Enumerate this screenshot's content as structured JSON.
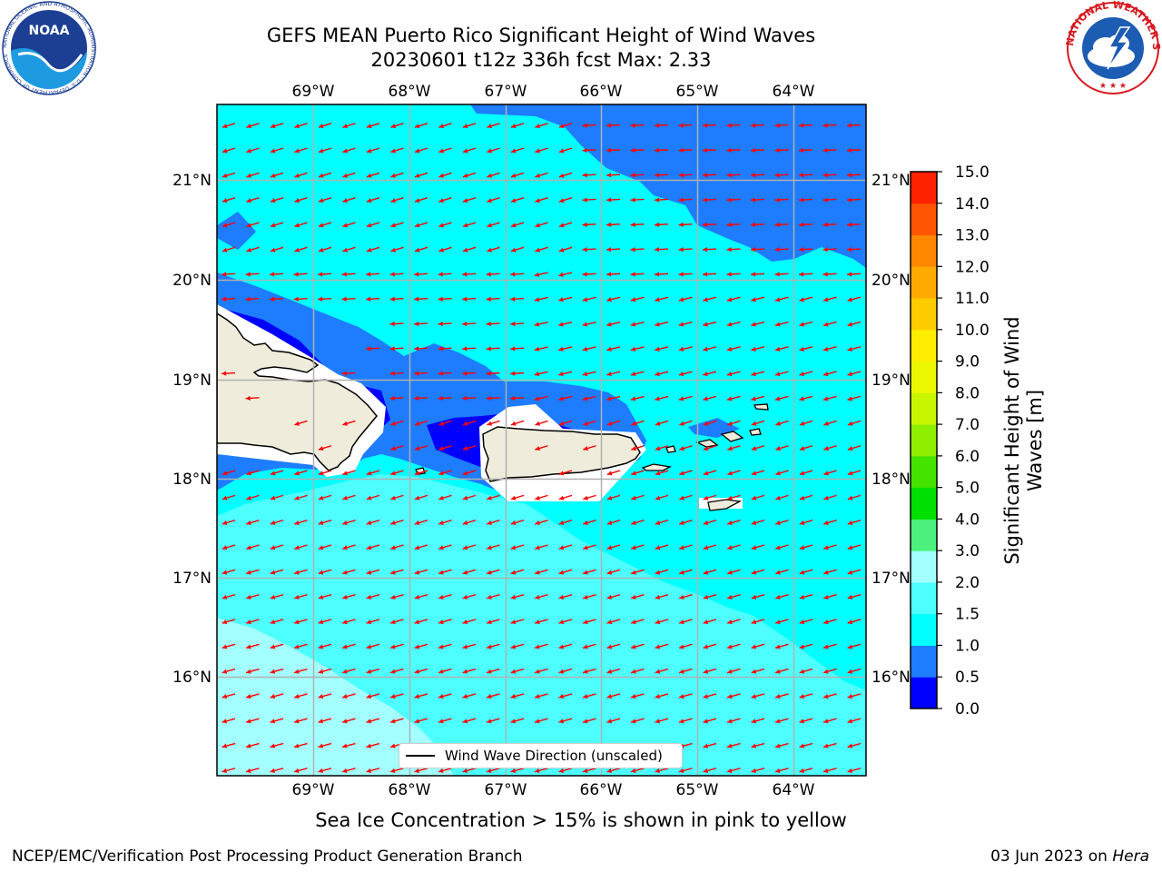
{
  "title": {
    "line1": "GEFS MEAN Puerto Rico Significant Height of Wind Waves",
    "line2": "20230601 t12z 336h fcst   Max: 2.33"
  },
  "map": {
    "lon_ticks": [
      "69°W",
      "68°W",
      "67°W",
      "66°W",
      "65°W",
      "64°W"
    ],
    "lat_ticks": [
      "21°N",
      "20°N",
      "19°N",
      "18°N",
      "17°N",
      "16°N"
    ],
    "lon_extent": [
      -70.0,
      -63.25
    ],
    "lat_extent": [
      15.0,
      21.75
    ],
    "vector_color": "#ff0000",
    "vector_direction": "northeast-origin waves pointing west-southwest",
    "land_color": "#efecdc"
  },
  "colorbar": {
    "label": "Significant Height of Wind Waves [m]",
    "label_lines": [
      "Significant Height of Wind",
      "Waves [m]"
    ],
    "tick_labels": [
      "0.0",
      "0.5",
      "1.0",
      "1.5",
      "2.0",
      "3.0",
      "4.0",
      "5.0",
      "6.0",
      "7.0",
      "8.0",
      "9.0",
      "10.0",
      "11.0",
      "12.0",
      "13.0",
      "14.0",
      "15.0"
    ],
    "levels": [
      0.0,
      0.5,
      1.0,
      1.5,
      2.0,
      3.0,
      4.0,
      5.0,
      6.0,
      7.0,
      8.0,
      9.0,
      10.0,
      11.0,
      12.0,
      13.0,
      14.0,
      15.0
    ],
    "colors": [
      "#0000ff",
      "#1e7cff",
      "#00ffff",
      "#4dffff",
      "#a4ffff",
      "#4cf07c",
      "#00e000",
      "#44e300",
      "#8fef00",
      "#c8f500",
      "#ecf800",
      "#ffee00",
      "#ffcc00",
      "#ffaa00",
      "#ff8800",
      "#ff5500",
      "#ff2200"
    ]
  },
  "legend": {
    "label": "Wind Wave Direction (unscaled)"
  },
  "footer": {
    "sea_ice_note": "Sea Ice Concentration > 15% is shown in pink to yellow",
    "credit": "NCEP/EMC/Verification Post Processing Product Generation Branch",
    "date_prefix": "03 Jun 2023 on ",
    "date_machine": "Hera"
  },
  "logos": {
    "left": {
      "name": "noaa-logo",
      "text": "NOAA",
      "ring_text": "NATIONAL OCEANIC AND ATMOSPHERIC ADMINISTRATION · U.S. DEPARTMENT OF COMMERCE"
    },
    "right": {
      "name": "nws-logo",
      "ring_text": "NATIONAL WEATHER SERVICE"
    }
  }
}
